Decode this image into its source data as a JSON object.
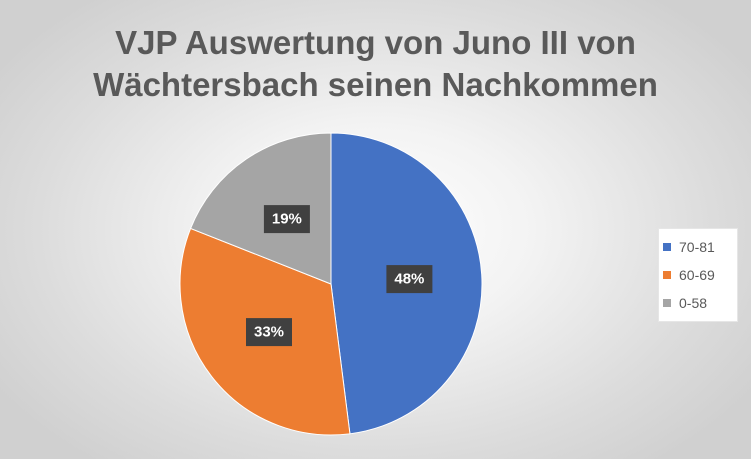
{
  "chart_data": {
    "type": "pie",
    "title": "VJP Auswertung von Juno III von Wächtersbach seinen Nachkommen",
    "title_lines": [
      "VJP Auswertung von Juno III von",
      "Wächtersbach seinen Nachkommen"
    ],
    "categories": [
      "70-81",
      "60-69",
      "0-58"
    ],
    "values": [
      48,
      33,
      19
    ],
    "labels": [
      "48%",
      "33%",
      "19%"
    ],
    "unit": "%",
    "colors": [
      "#4472c4",
      "#ed7d31",
      "#a5a5a5"
    ],
    "legend_position": "right",
    "start": "12 o'clock, clockwise"
  }
}
